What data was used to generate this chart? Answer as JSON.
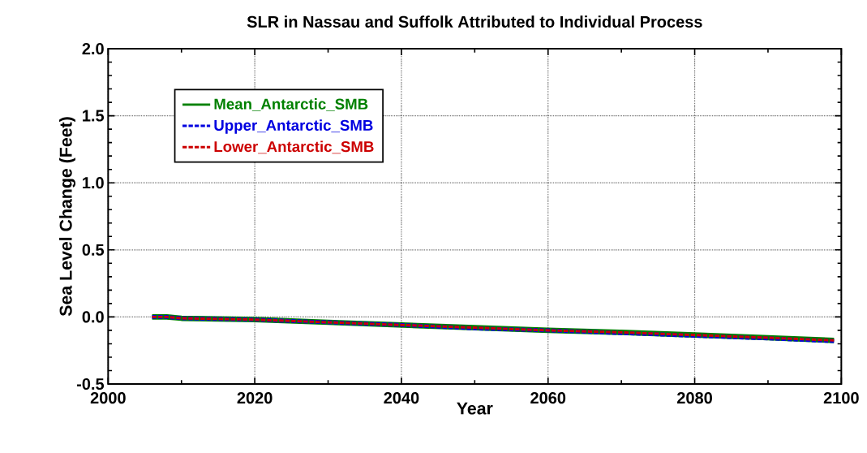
{
  "chart_data": {
    "type": "line",
    "title": "SLR in Nassau and Suffolk Attributed to Individual Process",
    "xlabel": "Year",
    "ylabel": "Sea Level Change (Feet)",
    "x": [
      2006,
      2008,
      2010,
      2020,
      2030,
      2040,
      2050,
      2060,
      2070,
      2080,
      2090,
      2099
    ],
    "series": [
      {
        "name": "Mean_Antarctic_SMB",
        "color": "#008000",
        "line_style": "solid",
        "values": [
          0,
          0,
          -0.01,
          -0.02,
          -0.04,
          -0.06,
          -0.08,
          -0.1,
          -0.115,
          -0.135,
          -0.155,
          -0.175
        ]
      },
      {
        "name": "Upper_Antarctic_SMB",
        "color": "#0000e0",
        "line_style": "dashed",
        "values": [
          0,
          0,
          -0.01,
          -0.02,
          -0.04,
          -0.06,
          -0.085,
          -0.1,
          -0.12,
          -0.14,
          -0.16,
          -0.18
        ]
      },
      {
        "name": "Lower_Antarctic_SMB",
        "color": "#cc0000",
        "line_style": "dashed",
        "values": [
          0,
          0,
          -0.01,
          -0.02,
          -0.04,
          -0.06,
          -0.08,
          -0.1,
          -0.115,
          -0.135,
          -0.155,
          -0.175
        ]
      }
    ],
    "xlim": [
      2000,
      2100
    ],
    "xticks": [
      2000,
      2020,
      2040,
      2060,
      2080,
      2100
    ],
    "ylim": [
      -0.5,
      2.0
    ],
    "yticks": [
      {
        "value": -0.5,
        "label": "-0.5"
      },
      {
        "value": 0,
        "label": "0.0"
      },
      {
        "value": 0.5,
        "label": "0.5"
      },
      {
        "value": 1,
        "label": "1.0"
      },
      {
        "value": 1.5,
        "label": "1.5"
      },
      {
        "value": 2,
        "label": "2.0"
      }
    ],
    "grid": true,
    "legend": "top left",
    "marker": "none"
  }
}
